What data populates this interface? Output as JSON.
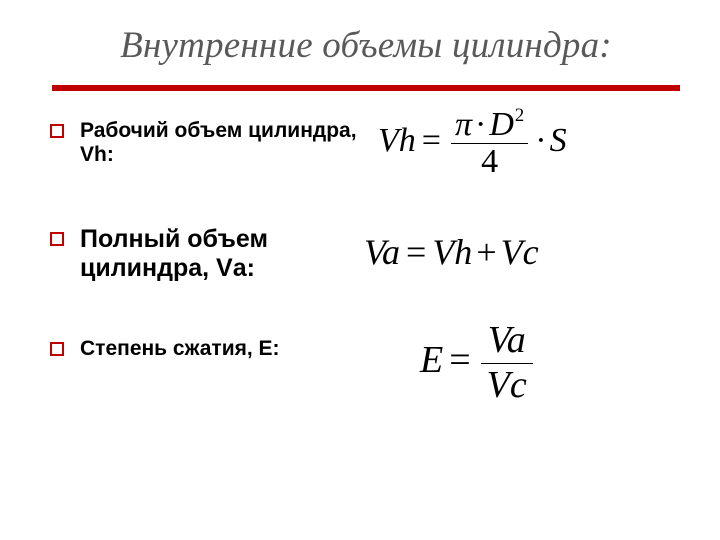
{
  "title": "Внутренние объемы цилиндра:",
  "accent_color": "#c00000",
  "title_color": "#595959",
  "background_color": "#ffffff",
  "text_color": "#000000",
  "bullets": [
    {
      "text": "Рабочий объем цилиндра, Vh:",
      "fontsize_pt": 16
    },
    {
      "text": "Полный объем цилиндра, Vа:",
      "fontsize_pt": 19
    },
    {
      "text": "Степень сжатия, Е:",
      "fontsize_pt": 16
    }
  ],
  "formulas": [
    {
      "id": "working_volume",
      "lhs": "Vh",
      "rhs_type": "fraction_times_scalar",
      "numerator": "π · D²",
      "denominator": "4",
      "trailing": "· S",
      "latex": "Vh = \\frac{\\pi \\cdot D^{2}}{4} \\cdot S"
    },
    {
      "id": "total_volume",
      "lhs": "Va",
      "rhs_type": "sum",
      "terms": [
        "Vh",
        "Vc"
      ],
      "latex": "Va = Vh + Vc"
    },
    {
      "id": "compression_ratio",
      "lhs": "E",
      "rhs_type": "fraction",
      "numerator": "Va",
      "denominator": "Vc",
      "latex": "E = \\frac{Va}{Vc}"
    }
  ],
  "typography": {
    "title_family": "Times New Roman",
    "title_style": "italic",
    "title_fontsize_pt": 28,
    "body_family": "Verdana",
    "body_weight": "bold",
    "formula_family": "Times New Roman",
    "formula_style": "italic"
  }
}
